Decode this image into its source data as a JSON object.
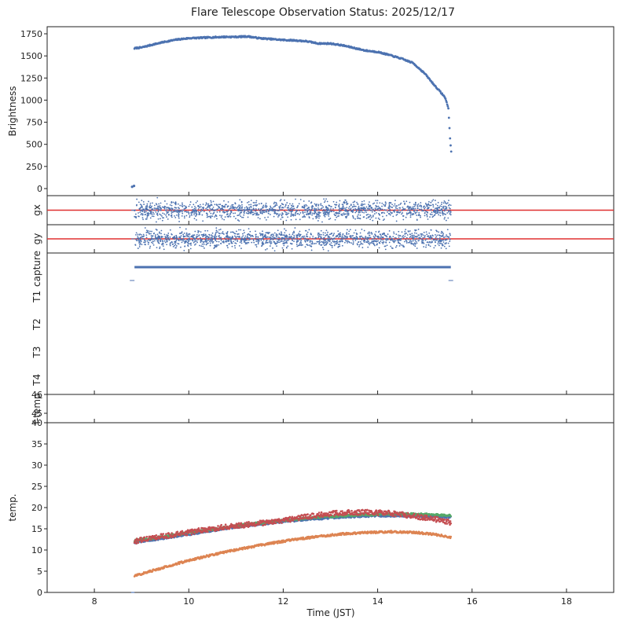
{
  "chart_data": {
    "type": "scatter",
    "title": "Flare Telescope Observation Status: 2025/12/17",
    "xlabel": "Time (JST)",
    "xlim": [
      7,
      19
    ],
    "xticks": [
      8,
      10,
      12,
      14,
      16,
      18
    ],
    "colors": {
      "blue": "#4c72b0",
      "orange": "#dd8452",
      "green": "#55a868",
      "red": "#c44e52",
      "refline": "#e03030"
    },
    "panels": [
      {
        "id": "brightness",
        "ylabel": "Brightness",
        "ylim": [
          -80,
          1830
        ],
        "yticks": [
          0,
          250,
          500,
          750,
          1000,
          1250,
          1500,
          1750
        ],
        "series": [
          {
            "color": "blue",
            "style": "dots",
            "x": [
              8.8,
              8.85,
              8.9,
              9.0,
              9.25,
              9.5,
              9.75,
              10.0,
              10.25,
              10.5,
              10.75,
              11.0,
              11.25,
              11.5,
              11.75,
              12.0,
              12.25,
              12.5,
              12.75,
              13.0,
              13.25,
              13.5,
              13.75,
              14.0,
              14.25,
              14.5,
              14.75,
              15.0,
              15.2,
              15.4,
              15.45,
              15.5,
              15.53,
              15.56
            ],
            "y": [
              20,
              1585,
              1590,
              1595,
              1630,
              1660,
              1685,
              1700,
              1705,
              1710,
              1715,
              1715,
              1720,
              1700,
              1690,
              1680,
              1675,
              1665,
              1640,
              1640,
              1620,
              1590,
              1560,
              1545,
              1510,
              1470,
              1420,
              1300,
              1170,
              1050,
              1000,
              900,
              600,
              400
            ]
          }
        ]
      },
      {
        "id": "gx",
        "ylabel": "gx",
        "ylim": [
          -1,
          1
        ],
        "yticks": [],
        "refline": 0,
        "series": [
          {
            "color": "blue",
            "style": "noise",
            "xrange": [
              8.85,
              15.55
            ],
            "spread": 0.9,
            "seed": 11
          }
        ]
      },
      {
        "id": "gy",
        "ylabel": "gy",
        "ylim": [
          -1,
          1
        ],
        "yticks": [],
        "refline": 0,
        "series": [
          {
            "color": "blue",
            "style": "noise",
            "xrange": [
              8.85,
              15.55
            ],
            "spread": 0.9,
            "seed": 23
          }
        ]
      },
      {
        "id": "capture",
        "ylabels": [
          "capture",
          "T1",
          "T2",
          "T3",
          "T4"
        ],
        "segments": [
          {
            "row": "capture",
            "x": [
              8.85,
              15.55
            ]
          }
        ],
        "markers": [
          8.8,
          15.55
        ]
      },
      {
        "id": "ftemp",
        "ylabel": "f-temp",
        "ylim": [
          44.5,
          46
        ],
        "yticks": [
          45,
          46
        ],
        "series": []
      },
      {
        "id": "temp",
        "ylabel": "temp.",
        "ylim": [
          0,
          40
        ],
        "yticks": [
          0,
          5,
          10,
          15,
          20,
          25,
          30,
          35,
          40
        ],
        "series": [
          {
            "color": "blue",
            "style": "band",
            "x": [
              8.85,
              9.5,
              10,
              10.5,
              11,
              11.5,
              12,
              12.5,
              13,
              13.5,
              14,
              14.5,
              15,
              15.55
            ],
            "y": [
              11.8,
              12.8,
              13.7,
              14.6,
              15.4,
              16.1,
              16.7,
              17.2,
              17.6,
              17.9,
              18.1,
              18.1,
              18.0,
              17.8
            ]
          },
          {
            "color": "green",
            "style": "band",
            "x": [
              8.85,
              9.5,
              10,
              10.5,
              11,
              11.5,
              12,
              12.5,
              13,
              13.5,
              14,
              14.5,
              15,
              15.55
            ],
            "y": [
              12.2,
              13.2,
              14.1,
              14.9,
              15.7,
              16.4,
              17.0,
              17.5,
              17.9,
              18.2,
              18.4,
              18.5,
              18.4,
              18.1
            ]
          },
          {
            "color": "orange",
            "style": "band",
            "x": [
              8.85,
              9.25,
              9.75,
              10.25,
              10.75,
              11.25,
              11.75,
              12.25,
              12.75,
              13.25,
              13.75,
              14.25,
              14.75,
              15.25,
              15.55
            ],
            "y": [
              3.9,
              5.2,
              6.8,
              8.2,
              9.5,
              10.6,
              11.6,
              12.5,
              13.2,
              13.8,
              14.1,
              14.3,
              14.2,
              13.6,
              13.0
            ]
          },
          {
            "color": "red",
            "style": "band",
            "jitter": 0.6,
            "x": [
              8.85,
              9.25,
              9.75,
              10.25,
              10.75,
              11.25,
              11.75,
              12.25,
              12.75,
              13.25,
              13.75,
              14.25,
              14.75,
              15.25,
              15.55
            ],
            "y": [
              12.0,
              12.9,
              13.7,
              14.6,
              15.4,
              16.0,
              16.6,
              17.4,
              18.3,
              18.8,
              18.9,
              18.7,
              18.0,
              17.2,
              16.5
            ]
          }
        ]
      }
    ]
  }
}
